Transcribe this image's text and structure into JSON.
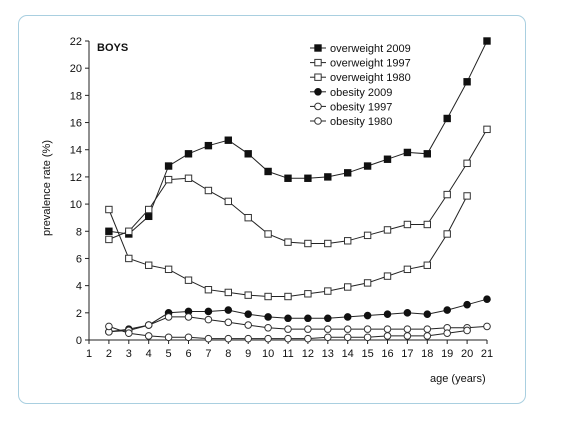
{
  "chart_data": {
    "type": "line",
    "title": "BOYS",
    "xlabel": "age (years)",
    "ylabel": "prevalence rate (%)",
    "xlim": [
      1,
      21
    ],
    "ylim": [
      0,
      22
    ],
    "x_ticks": [
      "1",
      "2",
      "3",
      "4",
      "5",
      "6",
      "7",
      "8",
      "9",
      "10",
      "11",
      "12",
      "13",
      "14",
      "15",
      "16",
      "17",
      "18",
      "19",
      "20",
      "21"
    ],
    "y_ticks": [
      "0",
      "2",
      "4",
      "6",
      "8",
      "10",
      "12",
      "14",
      "16",
      "18",
      "20",
      "22"
    ],
    "grid": false,
    "legend_position": "top-right",
    "series": [
      {
        "name": "overweight 2009",
        "marker": "filled-square",
        "x": [
          2,
          3,
          4,
          5,
          6,
          7,
          8,
          9,
          10,
          11,
          12,
          13,
          14,
          15,
          16,
          17,
          18,
          19,
          20,
          21
        ],
        "y": [
          8.0,
          7.8,
          9.1,
          12.8,
          13.7,
          14.3,
          14.7,
          13.7,
          12.4,
          11.9,
          11.9,
          12.0,
          12.3,
          12.8,
          13.3,
          13.8,
          13.7,
          16.3,
          19.0,
          22.0
        ]
      },
      {
        "name": "overweight 1997",
        "marker": "open-square",
        "x": [
          2,
          3,
          4,
          5,
          6,
          7,
          8,
          9,
          10,
          11,
          12,
          13,
          14,
          15,
          16,
          17,
          18,
          19,
          20,
          21
        ],
        "y": [
          7.4,
          8.0,
          9.6,
          11.8,
          11.9,
          11.0,
          10.2,
          9.0,
          7.8,
          7.2,
          7.1,
          7.1,
          7.3,
          7.7,
          8.1,
          8.5,
          8.5,
          10.7,
          13.0,
          15.5
        ]
      },
      {
        "name": "overweight 1980",
        "marker": "open-square",
        "x": [
          2,
          3,
          4,
          5,
          6,
          7,
          8,
          9,
          10,
          11,
          12,
          13,
          14,
          15,
          16,
          17,
          18,
          19,
          20
        ],
        "y": [
          9.6,
          6.0,
          5.5,
          5.2,
          4.4,
          3.7,
          3.5,
          3.3,
          3.2,
          3.2,
          3.4,
          3.6,
          3.9,
          4.2,
          4.7,
          5.2,
          5.5,
          7.8,
          10.6
        ]
      },
      {
        "name": "obesity 2009",
        "marker": "filled-circle",
        "x": [
          2,
          3,
          4,
          5,
          6,
          7,
          8,
          9,
          10,
          11,
          12,
          13,
          14,
          15,
          16,
          17,
          18,
          19,
          20,
          21
        ],
        "y": [
          0.6,
          0.8,
          1.1,
          2.0,
          2.1,
          2.1,
          2.2,
          1.9,
          1.7,
          1.6,
          1.6,
          1.6,
          1.7,
          1.8,
          1.9,
          2.0,
          1.9,
          2.2,
          2.6,
          3.0
        ]
      },
      {
        "name": "obesity 1997",
        "marker": "open-circle",
        "x": [
          2,
          3,
          4,
          5,
          6,
          7,
          8,
          9,
          10,
          11,
          12,
          13,
          14,
          15,
          16,
          17,
          18,
          19,
          20,
          21
        ],
        "y": [
          0.6,
          0.7,
          1.1,
          1.7,
          1.7,
          1.5,
          1.3,
          1.1,
          0.9,
          0.8,
          0.8,
          0.8,
          0.8,
          0.8,
          0.8,
          0.8,
          0.8,
          0.9,
          0.9,
          1.0
        ]
      },
      {
        "name": "obesity 1980",
        "marker": "open-circle",
        "x": [
          2,
          3,
          4,
          5,
          6,
          7,
          8,
          9,
          10,
          11,
          12,
          13,
          14,
          15,
          16,
          17,
          18,
          19,
          20
        ],
        "y": [
          1.0,
          0.5,
          0.3,
          0.2,
          0.2,
          0.1,
          0.1,
          0.1,
          0.1,
          0.1,
          0.1,
          0.2,
          0.2,
          0.2,
          0.3,
          0.3,
          0.3,
          0.5,
          0.7
        ]
      }
    ]
  }
}
